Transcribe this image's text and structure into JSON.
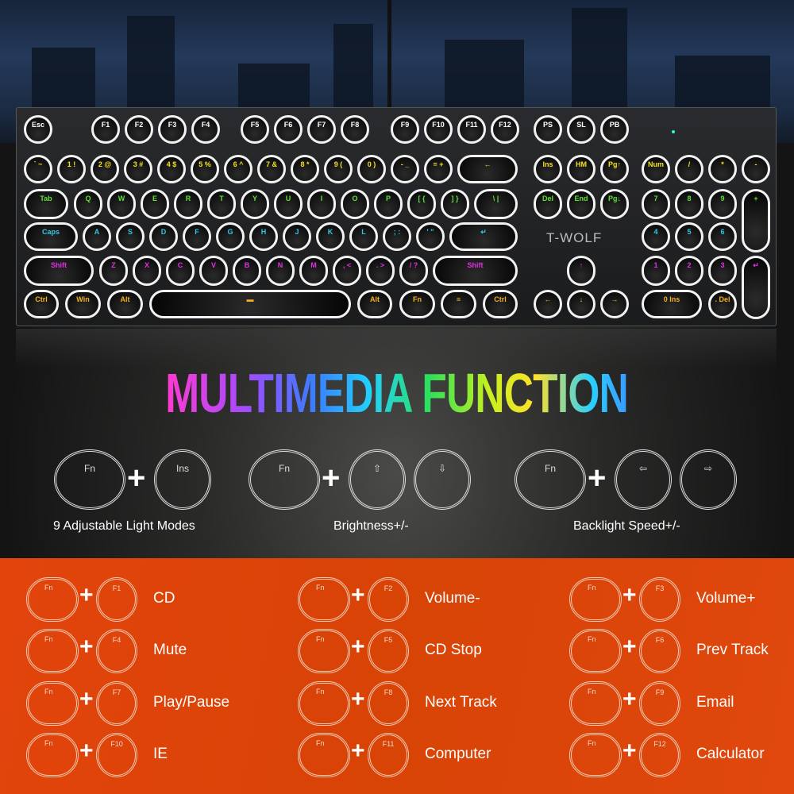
{
  "brand": "T-WOLF",
  "title": "MULTIMEDIA FUNCTION",
  "colors": {
    "accent_orange": "#dc4508",
    "white_keys": "#f2f2f2",
    "row_white": "#ffffff",
    "row_yellow": "#f5e020",
    "row_green": "#5fe03a",
    "row_cyan": "#2fc8e8",
    "row_magenta": "#e030e0",
    "row_orange": "#f5b020"
  },
  "keyboard": {
    "rows": [
      {
        "color": "#ffffff",
        "keys": [
          "Esc",
          "F1",
          "F2",
          "F3",
          "F4",
          "F5",
          "F6",
          "F7",
          "F8",
          "F9",
          "F10",
          "F11",
          "F12",
          "PS",
          "SL",
          "PB"
        ]
      },
      {
        "color": "#f5e020",
        "keys": [
          "` ~",
          "1 !",
          "2 @",
          "3 #",
          "4 $",
          "5 %",
          "6 ^",
          "7 &",
          "8 *",
          "9 (",
          "0 )",
          "- _",
          "= +",
          "←",
          "Ins",
          "HM",
          "Pg↑",
          "Num",
          "/",
          "*",
          "-"
        ]
      },
      {
        "color": "#5fe03a",
        "keys": [
          "Tab",
          "Q",
          "W",
          "E",
          "R",
          "T",
          "Y",
          "U",
          "I",
          "O",
          "P",
          "[ {",
          "] }",
          "\\ |",
          "Del",
          "End",
          "Pg↓",
          "7",
          "8",
          "9",
          "+"
        ]
      },
      {
        "color": "#2fc8e8",
        "keys": [
          "Caps",
          "A",
          "S",
          "D",
          "F",
          "G",
          "H",
          "J",
          "K",
          "L",
          "; :",
          "' \"",
          "↵",
          "4",
          "5",
          "6"
        ]
      },
      {
        "color": "#e030e0",
        "keys": [
          "Shift",
          "Z",
          "X",
          "C",
          "V",
          "B",
          "N",
          "M",
          ", <",
          ". >",
          "/ ?",
          "Shift",
          "↑",
          "1",
          "2",
          "3",
          "↵"
        ]
      },
      {
        "color": "#f5b020",
        "keys": [
          "Ctrl",
          "Win",
          "Alt",
          "▬",
          "Alt",
          "Fn",
          "≡",
          "Ctrl",
          "←",
          "↓",
          "→",
          "0 Ins",
          ". Del"
        ]
      }
    ]
  },
  "light_combos": [
    {
      "keys": [
        "Fn",
        "Ins"
      ],
      "label": "9 Adjustable Light Modes"
    },
    {
      "keys": [
        "Fn",
        "⇧",
        "⇩"
      ],
      "label": "Brightness+/-"
    },
    {
      "keys": [
        "Fn",
        "⇦",
        "⇨"
      ],
      "label": "Backlight Speed+/-"
    }
  ],
  "multimedia": [
    {
      "fn": "Fn",
      "key": "F1",
      "label": "CD"
    },
    {
      "fn": "Fn",
      "key": "F2",
      "label": "Volume-"
    },
    {
      "fn": "Fn",
      "key": "F3",
      "label": "Volume+"
    },
    {
      "fn": "Fn",
      "key": "F4",
      "label": "Mute"
    },
    {
      "fn": "Fn",
      "key": "F5",
      "label": "CD Stop"
    },
    {
      "fn": "Fn",
      "key": "F6",
      "label": "Prev Track"
    },
    {
      "fn": "Fn",
      "key": "F7",
      "label": "Play/Pause"
    },
    {
      "fn": "Fn",
      "key": "F8",
      "label": "Next Track"
    },
    {
      "fn": "Fn",
      "key": "F9",
      "label": "Email"
    },
    {
      "fn": "Fn",
      "key": "F10",
      "label": "IE"
    },
    {
      "fn": "Fn",
      "key": "F11",
      "label": "Computer"
    },
    {
      "fn": "Fn",
      "key": "F12",
      "label": "Calculator"
    }
  ],
  "plus_sign": "+"
}
